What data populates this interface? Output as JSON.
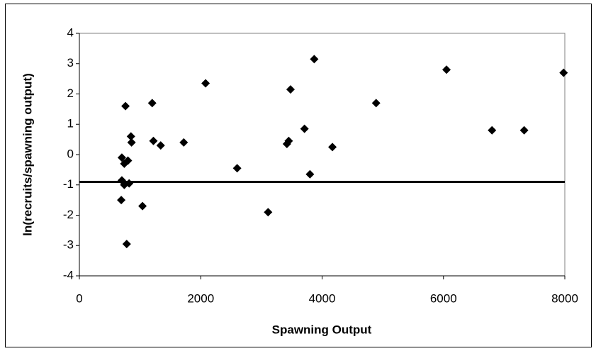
{
  "chart_data": {
    "type": "scatter",
    "x_label": "Spawning Output",
    "y_label": "ln(recruits/spawning output)",
    "xlim": [
      0,
      8000
    ],
    "xticks": [
      0,
      2000,
      4000,
      6000,
      8000
    ],
    "ylim": [
      -4,
      4
    ],
    "yticks": [
      -4,
      -3,
      -2,
      -1,
      0,
      1,
      2,
      3,
      4
    ],
    "color": "#000000",
    "reference_line": {
      "y": -0.9,
      "color": "#000000"
    },
    "x": [
      700,
      760,
      740,
      800,
      700,
      740,
      820,
      690,
      780,
      850,
      860,
      1040,
      1200,
      1220,
      1340,
      1720,
      2080,
      2600,
      3110,
      3420,
      3450,
      3480,
      3710,
      3800,
      3870,
      4170,
      4890,
      6050,
      6800,
      7330,
      7980
    ],
    "y": [
      -0.1,
      1.6,
      -0.3,
      -0.2,
      -0.85,
      -1.0,
      -0.95,
      -1.5,
      -2.95,
      0.6,
      0.4,
      -1.7,
      1.7,
      0.45,
      0.3,
      0.4,
      2.35,
      -0.45,
      -1.9,
      0.35,
      0.45,
      2.15,
      0.85,
      -0.65,
      3.15,
      0.25,
      1.7,
      2.8,
      0.8,
      0.8,
      2.7
    ]
  }
}
